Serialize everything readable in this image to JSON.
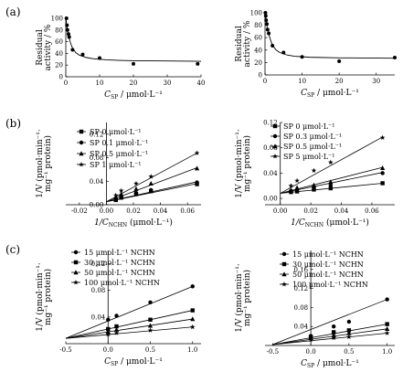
{
  "panel_labels": [
    "(a)",
    "(b)",
    "(c)"
  ],
  "chart_data": [
    {
      "id": "a1",
      "type": "scatter",
      "xlabel": "C_SP / μmol·L⁻¹",
      "ylabel": "Residual activity / %",
      "xlim": [
        0,
        40
      ],
      "ylim": [
        0,
        100
      ],
      "xticks": [
        0,
        10,
        20,
        30,
        40
      ],
      "yticks": [
        0,
        20,
        40,
        60,
        80,
        100
      ],
      "series": [
        {
          "points": [
            [
              0.2,
              100
            ],
            [
              0.35,
              88
            ],
            [
              0.5,
              80
            ],
            [
              0.8,
              73
            ],
            [
              1,
              68
            ],
            [
              2,
              46
            ],
            [
              5,
              38
            ],
            [
              10,
              32
            ],
            [
              20,
              22
            ],
            [
              39,
              22
            ]
          ],
          "fit": [
            [
              0.05,
              100
            ],
            [
              0.3,
              86
            ],
            [
              0.6,
              76
            ],
            [
              1,
              66
            ],
            [
              1.5,
              56
            ],
            [
              2,
              49
            ],
            [
              3,
              41
            ],
            [
              4,
              37
            ],
            [
              6,
              33
            ],
            [
              8,
              31
            ],
            [
              12,
              29
            ],
            [
              16,
              28
            ],
            [
              20,
              27.5
            ],
            [
              30,
              27
            ],
            [
              40,
              26.5
            ]
          ]
        }
      ]
    },
    {
      "id": "a2",
      "type": "scatter",
      "xlabel": "C_SP / μmol·L⁻¹",
      "ylabel": "Residual activity / %",
      "xlim": [
        0,
        35
      ],
      "ylim": [
        0,
        100
      ],
      "xticks": [
        0,
        10,
        20,
        30
      ],
      "yticks": [
        0,
        20,
        40,
        60,
        80,
        100
      ],
      "series": [
        {
          "points": [
            [
              0.1,
              100
            ],
            [
              0.2,
              95
            ],
            [
              0.3,
              88
            ],
            [
              0.5,
              82
            ],
            [
              0.7,
              73
            ],
            [
              1,
              67
            ],
            [
              2,
              47
            ],
            [
              5,
              36
            ],
            [
              10,
              29
            ],
            [
              20,
              22
            ],
            [
              35,
              28
            ]
          ],
          "fit": [
            [
              0.05,
              100
            ],
            [
              0.3,
              88
            ],
            [
              0.6,
              76
            ],
            [
              1,
              66
            ],
            [
              1.5,
              56
            ],
            [
              2,
              48
            ],
            [
              3,
              40
            ],
            [
              4,
              36
            ],
            [
              6,
              32
            ],
            [
              8,
              30
            ],
            [
              12,
              28.5
            ],
            [
              20,
              27.5
            ],
            [
              35,
              27
            ]
          ]
        }
      ]
    },
    {
      "id": "b1",
      "type": "line",
      "xlabel": "1/C_NCHN (μmol·L⁻¹)",
      "ylabel": "1/V (pmol·min⁻¹·mg⁻¹ protein)",
      "xlim": [
        -0.03,
        0.07
      ],
      "ylim": [
        0,
        0.14
      ],
      "xticks": [
        -0.02,
        0.0,
        0.02,
        0.04,
        0.06
      ],
      "yticks": [
        0.0,
        0.04,
        0.08,
        0.12
      ],
      "xtick_labels": [
        "-0.02",
        "0.00",
        "0.02",
        "0.04",
        "0.06"
      ],
      "ytick_labels": [
        "0.00",
        "0.04",
        "0.08",
        "0.12"
      ],
      "series": [
        {
          "name": "SP 0 μmol·L⁻¹",
          "marker": "square",
          "x": [
            0.007,
            0.011,
            0.022,
            0.033,
            0.067
          ],
          "y": [
            0.008,
            0.012,
            0.018,
            0.023,
            0.035
          ],
          "line": [
            [
              0,
              0.005
            ],
            [
              0.067,
              0.036
            ]
          ]
        },
        {
          "name": "SP 0.1 μmol·L⁻¹",
          "marker": "circle",
          "x": [
            0.007,
            0.011,
            0.022,
            0.033,
            0.067
          ],
          "y": [
            0.009,
            0.014,
            0.02,
            0.025,
            0.038
          ],
          "line": [
            [
              0,
              0.005
            ],
            [
              0.067,
              0.039
            ]
          ]
        },
        {
          "name": "SP 0.5 μmol·L⁻¹",
          "marker": "triangle",
          "x": [
            0.007,
            0.011,
            0.022,
            0.033,
            0.067
          ],
          "y": [
            0.012,
            0.018,
            0.027,
            0.036,
            0.062
          ],
          "line": [
            [
              0,
              0.005
            ],
            [
              0.067,
              0.063
            ]
          ]
        },
        {
          "name": "SP 1 μmol·L⁻¹",
          "marker": "star",
          "x": [
            0.007,
            0.011,
            0.022,
            0.033,
            0.067
          ],
          "y": [
            0.016,
            0.024,
            0.036,
            0.048,
            0.088
          ],
          "line": [
            [
              0,
              0.005
            ],
            [
              0.067,
              0.088
            ]
          ]
        }
      ]
    },
    {
      "id": "b2",
      "type": "line",
      "xlabel": "1/C_NCHN (μmol·L⁻¹)",
      "ylabel": "1/V (pmol·min⁻¹·mg⁻¹ protein)",
      "xlim": [
        -0.01,
        0.075
      ],
      "ylim": [
        -0.01,
        0.12
      ],
      "xticks": [
        0.0,
        0.02,
        0.04,
        0.06
      ],
      "yticks": [
        0.0,
        0.04,
        0.08,
        0.12
      ],
      "xtick_labels": [
        "0.00",
        "0.02",
        "0.04",
        "0.06"
      ],
      "ytick_labels": [
        "0.00",
        "0.04",
        "0.08",
        "0.12"
      ],
      "series": [
        {
          "name": "SP 0 μmol·L⁻¹",
          "marker": "square",
          "x": [
            0.007,
            0.011,
            0.022,
            0.033,
            0.067
          ],
          "y": [
            0.01,
            0.011,
            0.014,
            0.016,
            0.024
          ],
          "line": [
            [
              0,
              0.008
            ],
            [
              0.067,
              0.024
            ]
          ]
        },
        {
          "name": "SP 0.3 μmol·L⁻¹",
          "marker": "circle",
          "x": [
            0.007,
            0.011,
            0.022,
            0.033,
            0.067
          ],
          "y": [
            0.012,
            0.014,
            0.018,
            0.021,
            0.04
          ],
          "line": [
            [
              0,
              0.008
            ],
            [
              0.067,
              0.041
            ]
          ]
        },
        {
          "name": "SP 0.5 μmol·L⁻¹",
          "marker": "triangle",
          "x": [
            0.007,
            0.011,
            0.022,
            0.033,
            0.067
          ],
          "y": [
            0.013,
            0.017,
            0.021,
            0.026,
            0.048
          ],
          "line": [
            [
              0,
              0.008
            ],
            [
              0.067,
              0.049
            ]
          ]
        },
        {
          "name": "SP 5 μmol·L⁻¹",
          "marker": "star",
          "x": [
            0.007,
            0.011,
            0.022,
            0.033,
            0.067
          ],
          "y": [
            0.02,
            0.028,
            0.044,
            0.057,
            0.096
          ],
          "line": [
            [
              0,
              0.008
            ],
            [
              0.067,
              0.097
            ]
          ]
        }
      ]
    },
    {
      "id": "c1",
      "type": "line",
      "xlabel": "C_SP / μmol·L⁻¹",
      "ylabel": "1/V (pmol·min⁻¹·mg⁻¹ protein)",
      "xlim": [
        -0.5,
        1.1
      ],
      "ylim": [
        0,
        0.14
      ],
      "xticks": [
        -0.5,
        0.0,
        0.5,
        1.0
      ],
      "yticks": [
        0.04,
        0.08,
        0.12
      ],
      "xtick_labels": [
        "-0.5",
        "0.0",
        "0.5",
        "1.0"
      ],
      "ytick_labels": [
        "0.04",
        "0.08",
        "0.12"
      ],
      "series": [
        {
          "name": "15 μmol·L⁻¹ NCHN",
          "marker": "circle",
          "x": [
            0,
            0.1,
            0.5,
            1
          ],
          "y": [
            0.036,
            0.042,
            0.062,
            0.086
          ],
          "line": [
            [
              -0.5,
              0.008
            ],
            [
              1,
              0.086
            ]
          ]
        },
        {
          "name": "30 μmol·L⁻¹ NCHN",
          "marker": "square",
          "x": [
            0,
            0.1,
            0.5,
            1
          ],
          "y": [
            0.022,
            0.026,
            0.036,
            0.05
          ],
          "line": [
            [
              -0.5,
              0.008
            ],
            [
              1,
              0.05
            ]
          ]
        },
        {
          "name": "50 μmol·L⁻¹ NCHN",
          "marker": "triangle",
          "x": [
            0,
            0.1,
            0.5,
            1
          ],
          "y": [
            0.018,
            0.021,
            0.027,
            0.037
          ],
          "line": [
            [
              -0.5,
              0.008
            ],
            [
              1,
              0.037
            ]
          ]
        },
        {
          "name": "100 μmol·L⁻¹ NCHN",
          "marker": "star",
          "x": [
            0,
            0.1,
            0.5,
            1
          ],
          "y": [
            0.014,
            0.016,
            0.02,
            0.025
          ],
          "line": [
            [
              -0.5,
              0.008
            ],
            [
              1,
              0.025
            ]
          ]
        }
      ]
    },
    {
      "id": "c2",
      "type": "line",
      "xlabel": "C_SP / μmol·L⁻¹",
      "ylabel": "1/V (pmol·min⁻¹·mg⁻¹ protein)",
      "xlim": [
        -0.6,
        1.1
      ],
      "ylim": [
        0,
        0.2
      ],
      "xticks": [
        -0.5,
        0.0,
        0.5,
        1.0
      ],
      "yticks": [
        0.04,
        0.08,
        0.12,
        0.16
      ],
      "xtick_labels": [
        "-0.5",
        "0.0",
        "0.5",
        "1.0"
      ],
      "ytick_labels": [
        "0.04",
        "0.08",
        "0.12",
        "0.16"
      ],
      "series": [
        {
          "name": "15 μmol·L⁻¹ NCHN",
          "marker": "circle",
          "x": [
            0,
            0.3,
            0.5,
            1
          ],
          "y": [
            0.02,
            0.04,
            0.05,
            0.097
          ],
          "line": [
            [
              -0.5,
              0.002
            ],
            [
              1,
              0.097
            ]
          ]
        },
        {
          "name": "30 μmol·L⁻¹ NCHN",
          "marker": "square",
          "x": [
            0,
            0.3,
            0.5,
            1
          ],
          "y": [
            0.018,
            0.028,
            0.032,
            0.045
          ],
          "line": [
            [
              -0.5,
              0.002
            ],
            [
              1,
              0.045
            ]
          ]
        },
        {
          "name": "50 μmol·L⁻¹ NCHN",
          "marker": "triangle",
          "x": [
            0,
            0.3,
            0.5,
            1
          ],
          "y": [
            0.016,
            0.022,
            0.026,
            0.035
          ],
          "line": [
            [
              -0.5,
              0.002
            ],
            [
              1,
              0.035
            ]
          ]
        },
        {
          "name": "100 μmol·L⁻¹ NCHN",
          "marker": "star",
          "x": [
            0,
            0.3,
            0.5,
            1
          ],
          "y": [
            0.012,
            0.016,
            0.018,
            0.026
          ],
          "line": [
            [
              -0.5,
              0.002
            ],
            [
              1,
              0.026
            ]
          ]
        }
      ]
    }
  ]
}
